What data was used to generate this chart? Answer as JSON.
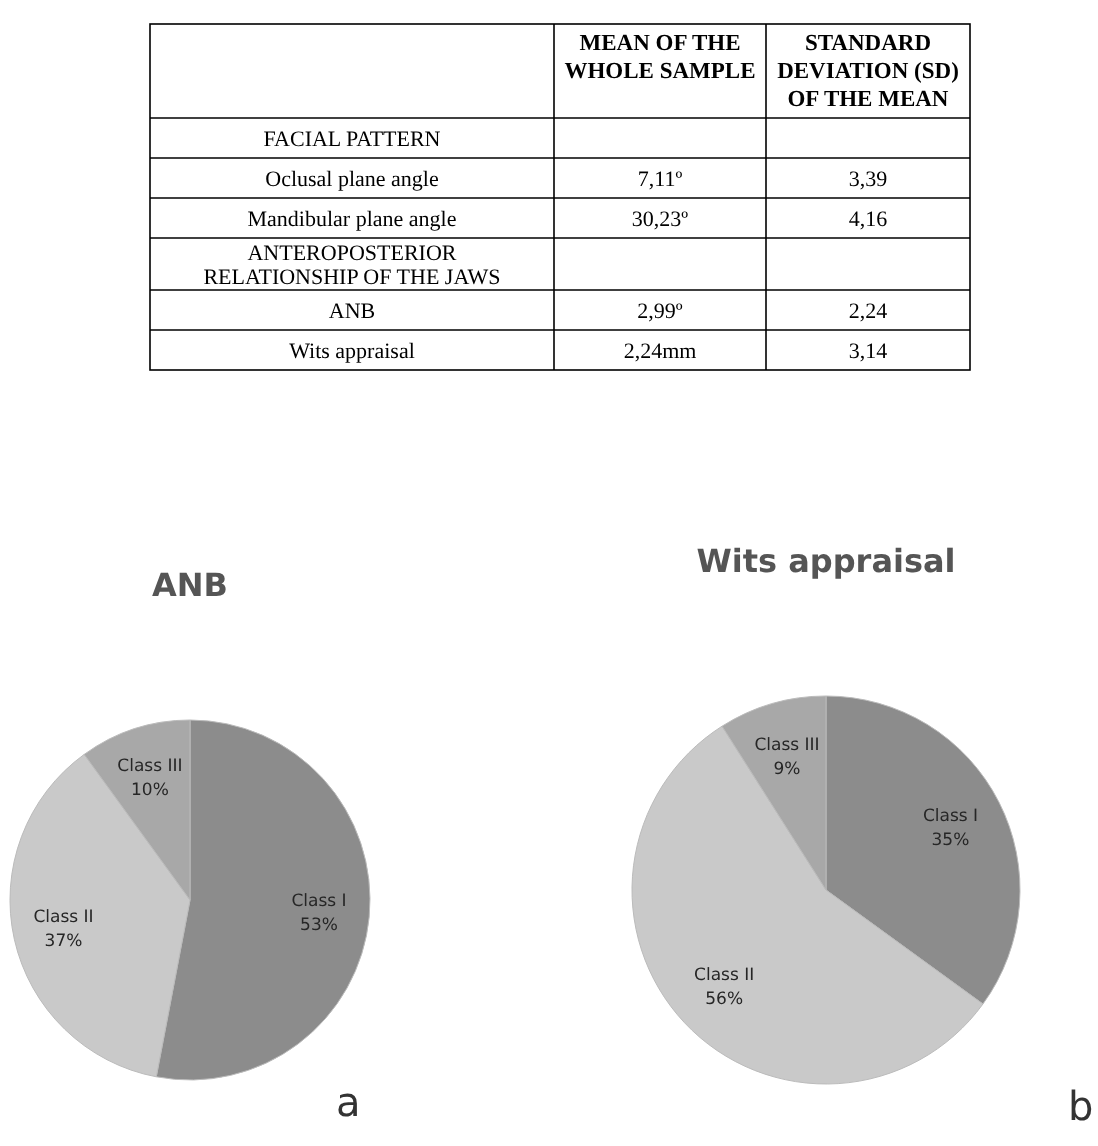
{
  "chart_data": [
    {
      "type": "other",
      "categories": [
        "MEAN OF THE WHOLE SAMPLE",
        "STANDARD DEVIATION (SD) OF THE MEAN"
      ],
      "y_categories": [
        "FACIAL PATTERN",
        "Oclusal plane angle",
        "Mandibular plane angle",
        "ANTEROPOSTERIOR RELATIONSHIP OF THE JAWS",
        "ANB",
        "Wits appraisal"
      ],
      "cell_labels": [
        [
          null,
          null
        ],
        [
          "7,11º",
          "3,39"
        ],
        [
          "30,23º",
          "4,16"
        ],
        [
          null,
          null
        ],
        [
          "2,99º",
          "2,24"
        ],
        [
          "2,24mm",
          "3,14"
        ]
      ]
    },
    {
      "type": "pie",
      "title": "ANB",
      "categories": [
        "Class I",
        "Class II",
        "Class III"
      ],
      "values": [
        53,
        37,
        10
      ],
      "colors": [
        "#8c8c8c",
        "#c9c9c9",
        "#a8a8a8"
      ],
      "value_labels": [
        "53%",
        "37%",
        "10%"
      ],
      "annotations": [
        "a"
      ]
    },
    {
      "type": "pie",
      "title": "Wits appraisal",
      "categories": [
        "Class I",
        "Class II",
        "Class III"
      ],
      "values": [
        35,
        56,
        9
      ],
      "colors": [
        "#8c8c8c",
        "#c9c9c9",
        "#a8a8a8"
      ],
      "value_labels": [
        "35%",
        "56%",
        "9%"
      ],
      "annotations": [
        "b"
      ]
    }
  ]
}
